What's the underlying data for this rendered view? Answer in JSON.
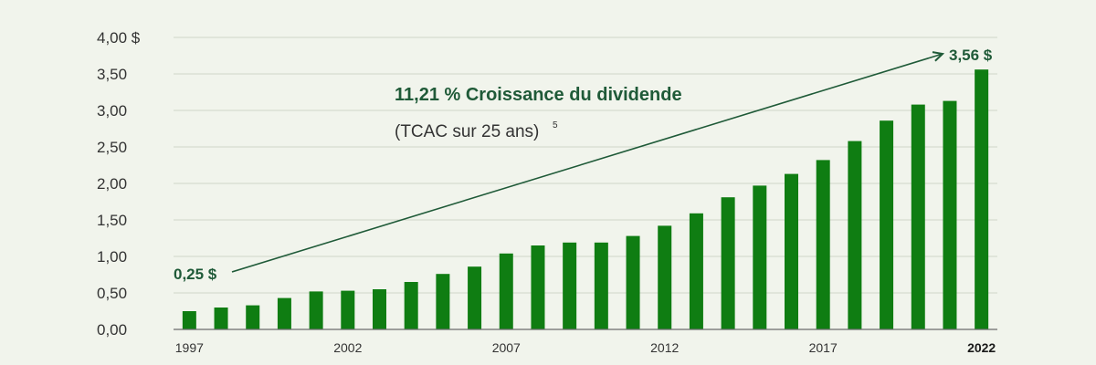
{
  "chart_data": {
    "type": "bar",
    "bar_color": "#0f7d12",
    "trend_color": "#1f5a38",
    "grid": true,
    "ylim": [
      0,
      4
    ],
    "y_ticks": [
      "0,00",
      "0,50",
      "1,00",
      "1,50",
      "2,00",
      "2,50",
      "3,00",
      "3,50",
      "4,00 $"
    ],
    "categories": [
      "1997",
      "1998",
      "1999",
      "2000",
      "2001",
      "2002",
      "2003",
      "2004",
      "2005",
      "2006",
      "2007",
      "2008",
      "2009",
      "2010",
      "2011",
      "2012",
      "2013",
      "2014",
      "2015",
      "2016",
      "2017",
      "2018",
      "2019",
      "2020",
      "2021",
      "2022"
    ],
    "values": [
      0.25,
      0.3,
      0.33,
      0.43,
      0.52,
      0.53,
      0.55,
      0.65,
      0.76,
      0.86,
      1.04,
      1.15,
      1.19,
      1.19,
      1.28,
      1.42,
      1.59,
      1.81,
      1.97,
      2.13,
      2.32,
      2.58,
      2.86,
      3.08,
      3.13,
      3.56
    ],
    "x_tick_labels": [
      "1997",
      "2002",
      "2007",
      "2012",
      "2017",
      "2022"
    ],
    "highlight_tick": "2022",
    "annotations": {
      "start_label": "0,25 $",
      "end_label": "3,56 $",
      "growth_title": "11,21 % Croissance du dividende",
      "growth_subtitle": "(TCAC sur 25 ans)",
      "growth_footnote": "5"
    }
  }
}
